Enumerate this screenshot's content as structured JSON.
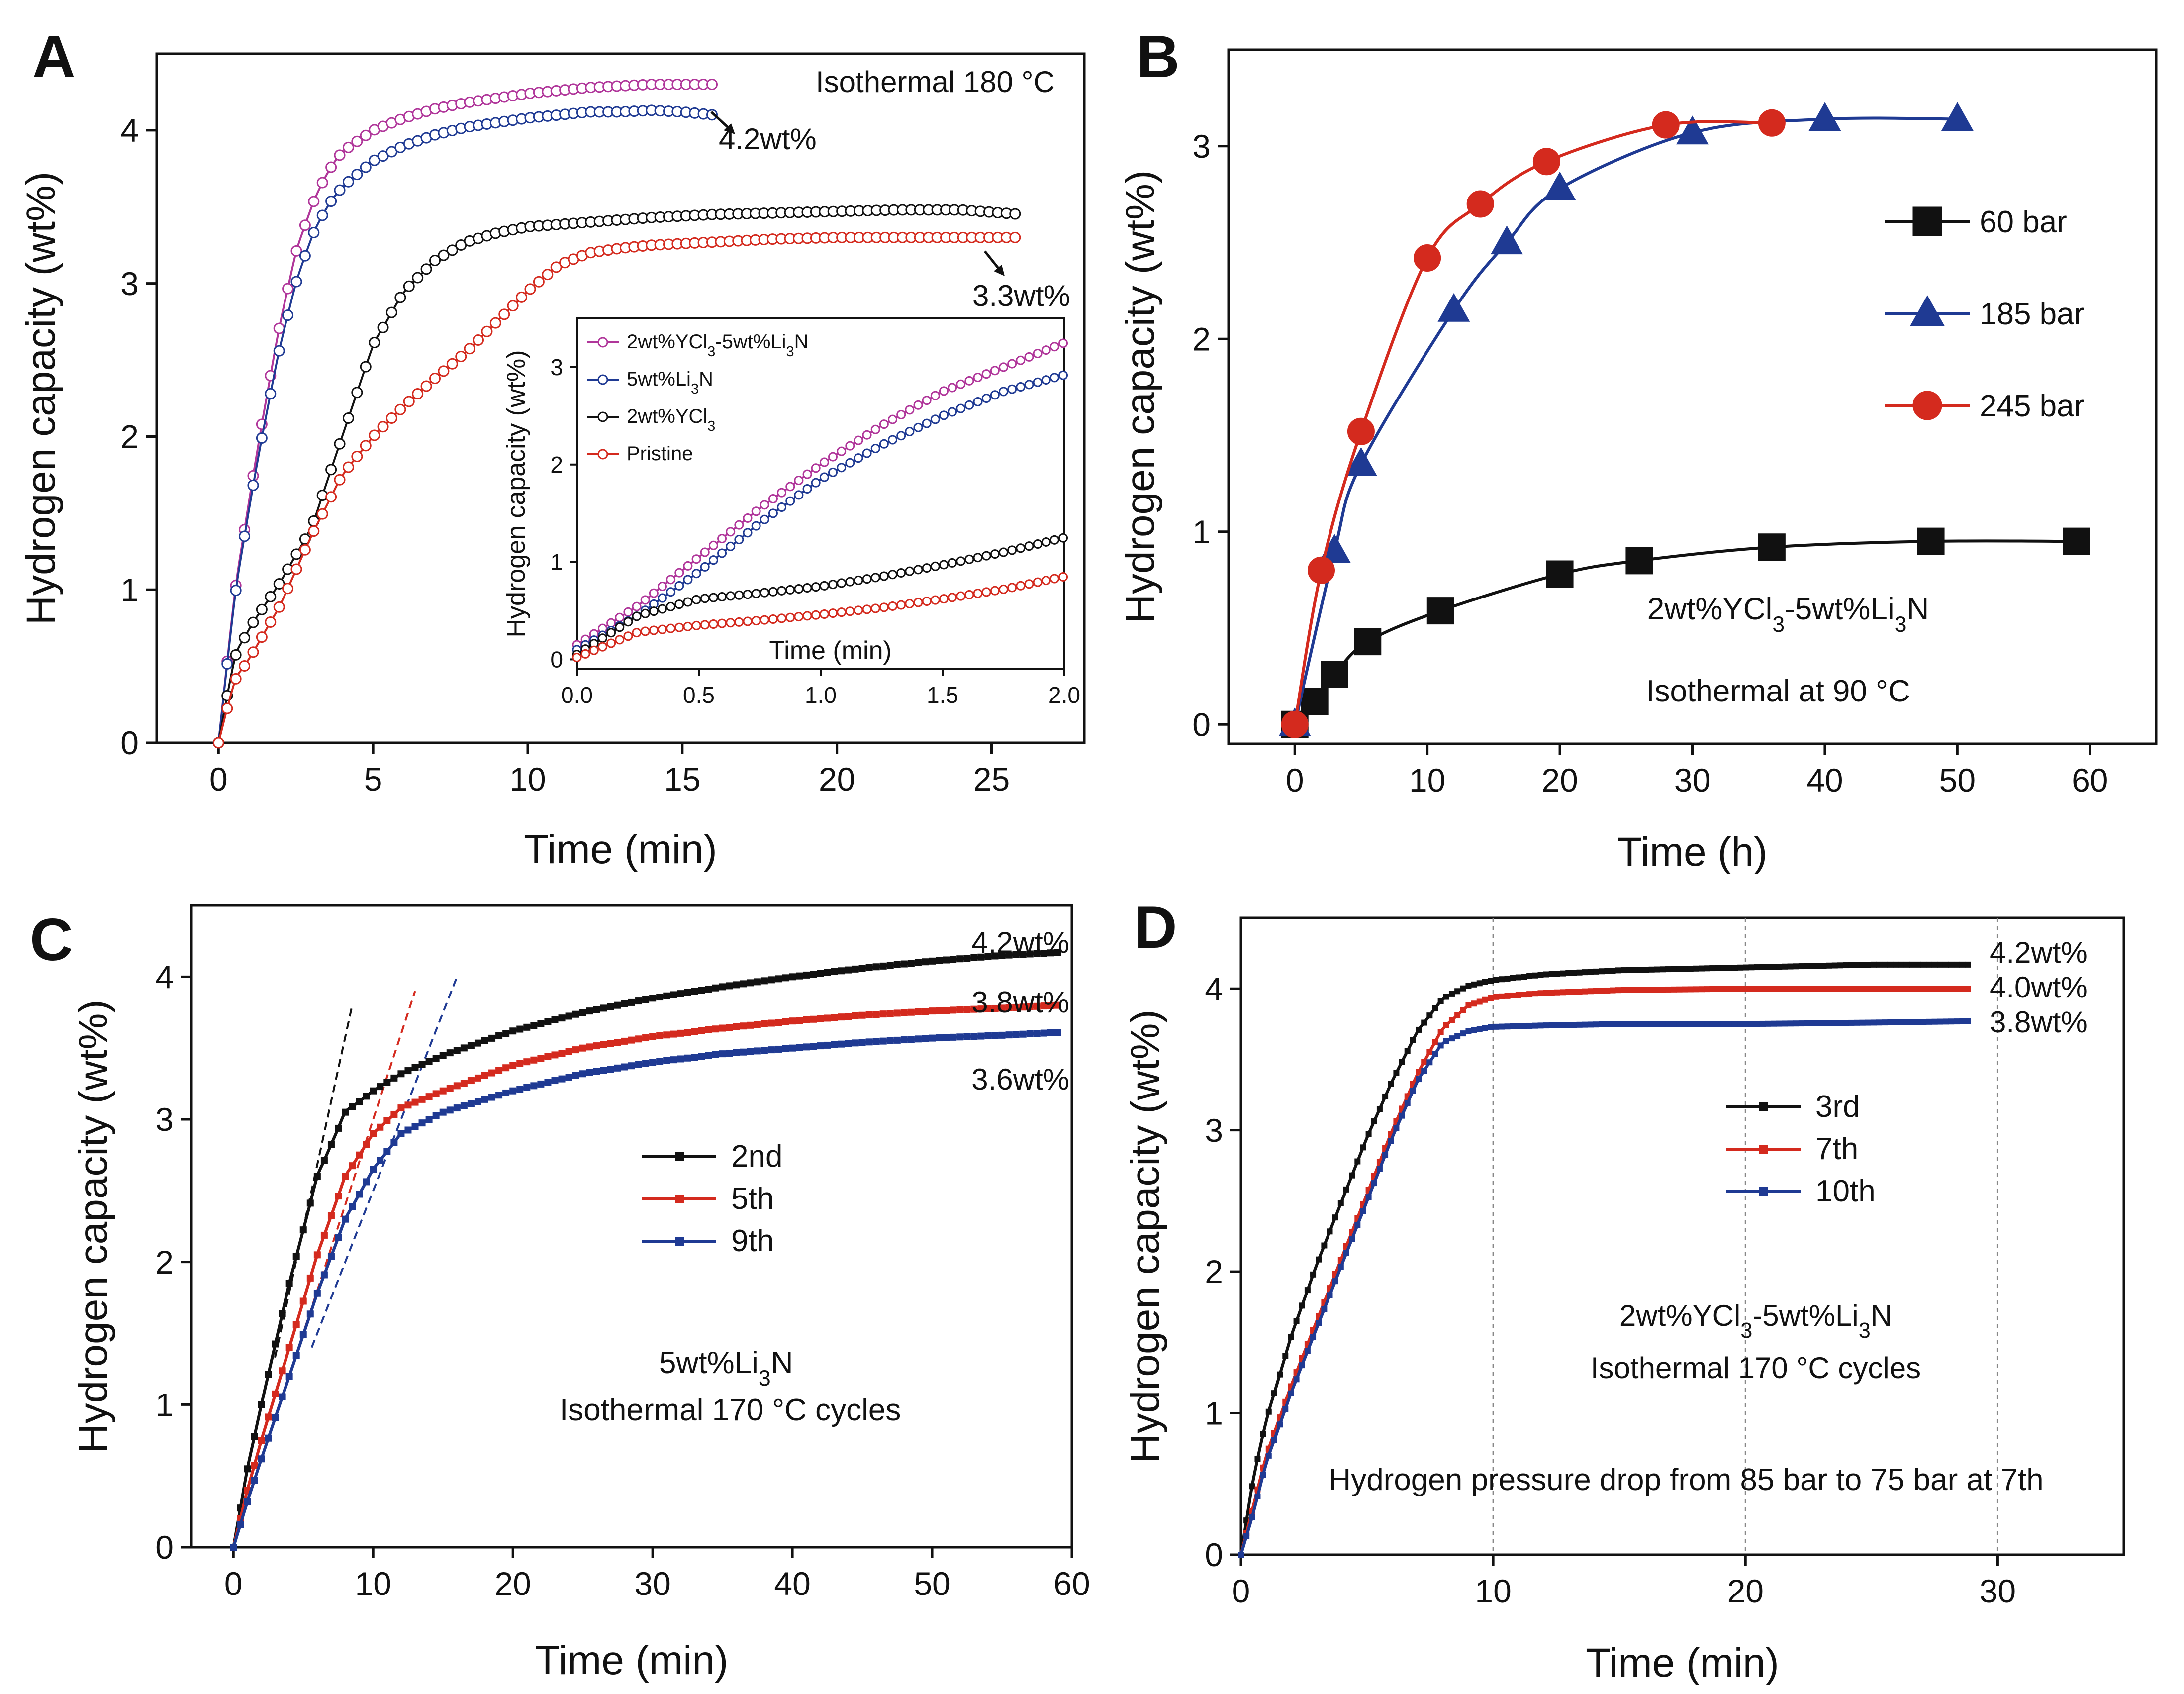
{
  "colors": {
    "black": "#111111",
    "red": "#d42a1e",
    "blue": "#1f3a93",
    "magenta": "#b0369a",
    "navy": "#1a2f8f"
  },
  "chart_data": [
    {
      "panel": "A",
      "type": "scatter",
      "xlabel": "Time (min)",
      "ylabel": "Hydrogen capacity (wt%)",
      "xlim": [
        -2,
        28
      ],
      "ylim": [
        0,
        4.5
      ],
      "xticks": [
        0,
        5,
        10,
        15,
        20,
        25
      ],
      "yticks": [
        0,
        1,
        2,
        3,
        4
      ],
      "annotations": [
        {
          "text": "Isothermal 180 °C"
        },
        {
          "text": "4.2wt%"
        },
        {
          "text": "3.3wt%"
        }
      ],
      "series": [
        {
          "name": "2wt%YCl3-5wt%Li3N",
          "color": "#b0369a",
          "x": [
            0,
            0.5,
            1,
            1.5,
            2,
            2.5,
            3,
            3.5,
            4,
            5,
            6,
            7,
            8,
            9,
            10,
            11,
            12,
            13,
            14,
            15,
            16
          ],
          "y": [
            0,
            0.95,
            1.6,
            2.2,
            2.75,
            3.2,
            3.5,
            3.72,
            3.86,
            4.0,
            4.08,
            4.14,
            4.18,
            4.21,
            4.24,
            4.26,
            4.28,
            4.29,
            4.3,
            4.3,
            4.3
          ]
        },
        {
          "name": "5wt%Li3N",
          "color": "#1f3a93",
          "x": [
            0,
            0.5,
            1,
            1.5,
            2,
            2.5,
            3,
            3.5,
            4,
            5,
            6,
            7,
            8,
            9,
            10,
            11,
            12,
            13,
            14,
            15,
            16
          ],
          "y": [
            0,
            0.92,
            1.55,
            2.1,
            2.6,
            3.0,
            3.3,
            3.5,
            3.63,
            3.8,
            3.9,
            3.97,
            4.02,
            4.05,
            4.08,
            4.1,
            4.12,
            4.12,
            4.13,
            4.12,
            4.1
          ]
        },
        {
          "name": "2wt%YCl3",
          "color": "#111111",
          "x": [
            0,
            0.5,
            1,
            2,
            3,
            4,
            5,
            6,
            7,
            8,
            9,
            10,
            12,
            14,
            16,
            18,
            20,
            22,
            24,
            26
          ],
          "y": [
            0,
            0.55,
            0.75,
            1.05,
            1.4,
            2.0,
            2.6,
            2.95,
            3.15,
            3.27,
            3.33,
            3.37,
            3.4,
            3.43,
            3.45,
            3.46,
            3.47,
            3.48,
            3.48,
            3.45
          ]
        },
        {
          "name": "Pristine",
          "color": "#d42a1e",
          "x": [
            0,
            0.5,
            1,
            2,
            3,
            4,
            5,
            6,
            7,
            8,
            9,
            10,
            11,
            12,
            13,
            14,
            16,
            18,
            20,
            22,
            24,
            26
          ],
          "y": [
            0,
            0.4,
            0.55,
            0.9,
            1.35,
            1.75,
            2.0,
            2.2,
            2.38,
            2.55,
            2.75,
            2.95,
            3.12,
            3.2,
            3.23,
            3.25,
            3.27,
            3.29,
            3.3,
            3.3,
            3.3,
            3.3
          ]
        }
      ],
      "inset": {
        "xlabel": "Time (min)",
        "ylabel": "Hydrogen capacity (wt%)",
        "xlim": [
          0,
          2.0
        ],
        "ylim": [
          -0.1,
          3.5
        ],
        "xtick_labels": [
          "0.0",
          "0.5",
          "1.0",
          "1.5",
          "2.0"
        ],
        "xticks": [
          0,
          0.5,
          1.0,
          1.5,
          2.0
        ],
        "yticks": [
          0,
          1,
          2,
          3
        ],
        "legend": [
          {
            "label": "2wt%YCl3-5wt%Li3N",
            "main": "2wt%YCl",
            "sub1": "3",
            "mid": "-5wt%Li",
            "sub2": "3",
            "end": "N",
            "color": "#b0369a"
          },
          {
            "label": "5wt%Li3N",
            "main": "5wt%Li",
            "sub1": "3",
            "mid": "N",
            "sub2": "",
            "end": "",
            "color": "#1f3a93"
          },
          {
            "label": "2wt%YCl3",
            "main": "2wt%YCl",
            "sub1": "3",
            "mid": "",
            "sub2": "",
            "end": "",
            "color": "#111111"
          },
          {
            "label": "Pristine",
            "main": "Pristine",
            "sub1": "",
            "mid": "",
            "sub2": "",
            "end": "",
            "color": "#d42a1e"
          }
        ],
        "series": [
          {
            "name": "2wt%YCl3-5wt%Li3N",
            "color": "#b0369a",
            "x": [
              0,
              0.25,
              0.5,
              0.75,
              1.0,
              1.25,
              1.5,
              1.75,
              2.0
            ],
            "y": [
              0.15,
              0.55,
              1.05,
              1.55,
              2.0,
              2.4,
              2.75,
              3.0,
              3.25
            ]
          },
          {
            "name": "5wt%Li3N",
            "color": "#1f3a93",
            "x": [
              0,
              0.25,
              0.5,
              0.75,
              1.0,
              1.25,
              1.5,
              1.75,
              2.0
            ],
            "y": [
              0.1,
              0.45,
              0.9,
              1.4,
              1.85,
              2.2,
              2.5,
              2.75,
              2.92
            ]
          },
          {
            "name": "2wt%YCl3",
            "color": "#111111",
            "x": [
              0,
              0.25,
              0.5,
              0.75,
              1.0,
              1.25,
              1.5,
              1.75,
              2.0
            ],
            "y": [
              0.05,
              0.45,
              0.62,
              0.68,
              0.75,
              0.85,
              0.97,
              1.1,
              1.25
            ]
          },
          {
            "name": "Pristine",
            "color": "#d42a1e",
            "x": [
              0,
              0.25,
              0.5,
              0.75,
              1.0,
              1.25,
              1.5,
              1.75,
              2.0
            ],
            "y": [
              0.02,
              0.28,
              0.35,
              0.4,
              0.46,
              0.53,
              0.62,
              0.72,
              0.85
            ]
          }
        ]
      }
    },
    {
      "panel": "B",
      "type": "line",
      "xlabel": "Time (h)",
      "ylabel": "Hydrogen capacity (wt%)",
      "xlim": [
        -5,
        65
      ],
      "ylim": [
        -0.1,
        3.5
      ],
      "xticks": [
        0,
        10,
        20,
        30,
        40,
        50,
        60
      ],
      "yticks": [
        0,
        1,
        2,
        3
      ],
      "legend_position": "center-right",
      "annotations": [
        {
          "text": "2wt%YCl3-5wt%Li3N",
          "main": "2wt%YCl",
          "sub1": "3",
          "mid": "-5wt%Li",
          "sub2": "3",
          "end": "N"
        },
        {
          "text": "Isothermal at 90 °C"
        }
      ],
      "series": [
        {
          "name": "60 bar",
          "color": "#111111",
          "marker": "square",
          "x": [
            0,
            1.5,
            3,
            5.5,
            11,
            20,
            26,
            36,
            48,
            59
          ],
          "y": [
            0,
            0.12,
            0.26,
            0.43,
            0.59,
            0.78,
            0.85,
            0.92,
            0.95,
            0.95
          ]
        },
        {
          "name": "185 bar",
          "color": "#1f3a93",
          "marker": "triangle",
          "x": [
            0,
            3,
            5,
            12,
            16,
            20,
            30,
            40,
            50
          ],
          "y": [
            0,
            0.9,
            1.35,
            2.15,
            2.5,
            2.78,
            3.07,
            3.14,
            3.14
          ]
        },
        {
          "name": "245 bar",
          "color": "#d42a1e",
          "marker": "circle",
          "x": [
            0,
            2,
            5,
            10,
            14,
            19,
            28,
            36
          ],
          "y": [
            0,
            0.8,
            1.52,
            2.42,
            2.7,
            2.92,
            3.11,
            3.12
          ]
        }
      ]
    },
    {
      "panel": "C",
      "type": "line",
      "xlabel": "Time (min)",
      "ylabel": "Hydrogen capacity (wt%)",
      "xlim": [
        -3,
        60
      ],
      "ylim": [
        0,
        4.5
      ],
      "xticks": [
        0,
        10,
        20,
        30,
        40,
        50,
        60
      ],
      "yticks": [
        0,
        1,
        2,
        3,
        4
      ],
      "legend_position": "center-left",
      "annotations": [
        {
          "text": "4.2wt%",
          "color": "#111111"
        },
        {
          "text": "3.8wt%",
          "color": "#d42a1e"
        },
        {
          "text": "3.6wt%",
          "color": "#1f3a93"
        },
        {
          "text": "5wt%Li3N",
          "main": "5wt%Li",
          "sub1": "3",
          "end": "N"
        },
        {
          "text": "Isothermal 170 °C cycles"
        }
      ],
      "series": [
        {
          "name": "2nd",
          "color": "#111111",
          "x": [
            0,
            1,
            2,
            4,
            6,
            8,
            10,
            12,
            15,
            20,
            25,
            30,
            35,
            40,
            45,
            50,
            55,
            59
          ],
          "y": [
            0,
            0.55,
            1.0,
            1.85,
            2.6,
            3.05,
            3.2,
            3.32,
            3.45,
            3.62,
            3.75,
            3.85,
            3.93,
            4.0,
            4.06,
            4.11,
            4.15,
            4.17
          ]
        },
        {
          "name": "5th",
          "color": "#d42a1e",
          "x": [
            0,
            1,
            2,
            4,
            6,
            8,
            10,
            12,
            15,
            20,
            25,
            30,
            35,
            40,
            45,
            50,
            55,
            59
          ],
          "y": [
            0,
            0.4,
            0.75,
            1.4,
            2.05,
            2.6,
            2.9,
            3.08,
            3.2,
            3.38,
            3.5,
            3.58,
            3.64,
            3.69,
            3.73,
            3.76,
            3.78,
            3.8
          ]
        },
        {
          "name": "9th",
          "color": "#1f3a93",
          "x": [
            0,
            1,
            2,
            4,
            6,
            8,
            10,
            12,
            15,
            20,
            25,
            30,
            35,
            40,
            45,
            50,
            55,
            59
          ],
          "y": [
            0,
            0.32,
            0.62,
            1.2,
            1.78,
            2.3,
            2.65,
            2.9,
            3.05,
            3.2,
            3.32,
            3.4,
            3.46,
            3.5,
            3.54,
            3.57,
            3.59,
            3.61
          ]
        }
      ]
    },
    {
      "panel": "D",
      "type": "line",
      "xlabel": "Time (min)",
      "ylabel": "Hydrogen capacity (wt%)",
      "xlim": [
        0,
        35
      ],
      "ylim": [
        0,
        4.5
      ],
      "xticks": [
        0,
        10,
        20,
        30
      ],
      "yticks": [
        0,
        1,
        2,
        3,
        4
      ],
      "grid_x": [
        10,
        20,
        30
      ],
      "legend_position": "center",
      "annotations": [
        {
          "text": "4.2wt%",
          "color": "#111111"
        },
        {
          "text": "4.0wt%",
          "color": "#d42a1e"
        },
        {
          "text": "3.8wt%",
          "color": "#1f3a93"
        },
        {
          "text": "2wt%YCl3-5wt%Li3N",
          "main": "2wt%YCl",
          "sub1": "3",
          "mid": "-5wt%Li",
          "sub2": "3",
          "end": "N"
        },
        {
          "text": "Isothermal 170 °C cycles"
        },
        {
          "text": "Hydrogen pressure drop from 85 bar to 75 bar at 7th"
        }
      ],
      "series": [
        {
          "name": "3rd",
          "color": "#111111",
          "x": [
            0,
            0.5,
            1,
            2,
            3,
            4,
            5,
            6,
            7,
            8,
            9,
            10,
            12,
            15,
            20,
            25,
            29
          ],
          "y": [
            0,
            0.55,
            0.95,
            1.55,
            2.05,
            2.5,
            2.95,
            3.35,
            3.7,
            3.93,
            4.02,
            4.06,
            4.1,
            4.13,
            4.15,
            4.17,
            4.17
          ]
        },
        {
          "name": "7th",
          "color": "#d42a1e",
          "x": [
            0,
            0.5,
            1,
            2,
            3,
            4,
            5,
            6,
            7,
            8,
            9,
            10,
            12,
            15,
            20,
            25,
            29
          ],
          "y": [
            0,
            0.35,
            0.7,
            1.2,
            1.65,
            2.1,
            2.55,
            3.0,
            3.4,
            3.72,
            3.88,
            3.94,
            3.97,
            3.99,
            4.0,
            4.0,
            4.0
          ]
        },
        {
          "name": "10th",
          "color": "#1f3a93",
          "x": [
            0,
            0.5,
            1,
            2,
            3,
            4,
            5,
            6,
            7,
            8,
            9,
            10,
            12,
            15,
            20,
            25,
            29
          ],
          "y": [
            0,
            0.3,
            0.65,
            1.15,
            1.6,
            2.05,
            2.5,
            2.95,
            3.35,
            3.62,
            3.7,
            3.73,
            3.74,
            3.75,
            3.75,
            3.76,
            3.77
          ]
        }
      ]
    }
  ]
}
